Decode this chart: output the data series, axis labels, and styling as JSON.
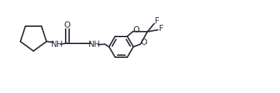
{
  "bg_color": "#ffffff",
  "line_color": "#2a2a3a",
  "line_width": 1.4,
  "font_size": 8.5,
  "fig_w": 4.06,
  "fig_h": 1.35,
  "dpi": 100,
  "xlim": [
    0,
    10.2
  ],
  "ylim": [
    -0.5,
    3.0
  ]
}
